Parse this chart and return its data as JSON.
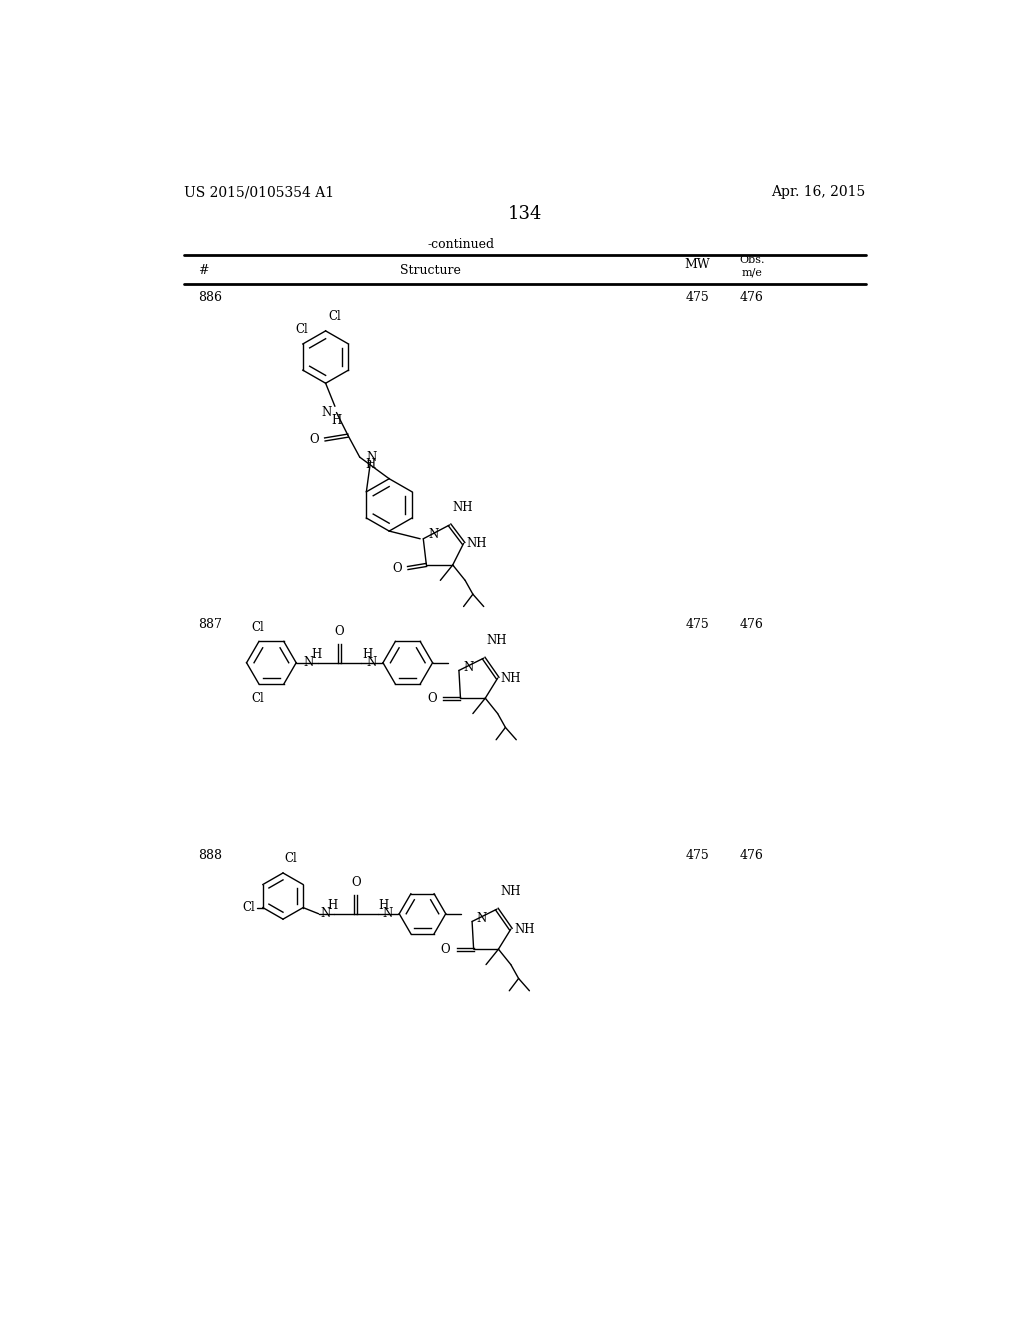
{
  "page_header_left": "US 2015/0105354 A1",
  "page_header_right": "Apr. 16, 2015",
  "page_number": "134",
  "table_header": "-continued",
  "rows": [
    {
      "num": "886",
      "mw": "475",
      "mz": "476"
    },
    {
      "num": "887",
      "mw": "475",
      "mz": "476"
    },
    {
      "num": "888",
      "mw": "475",
      "mz": "476"
    }
  ],
  "bg_color": "#ffffff",
  "text_color": "#000000"
}
